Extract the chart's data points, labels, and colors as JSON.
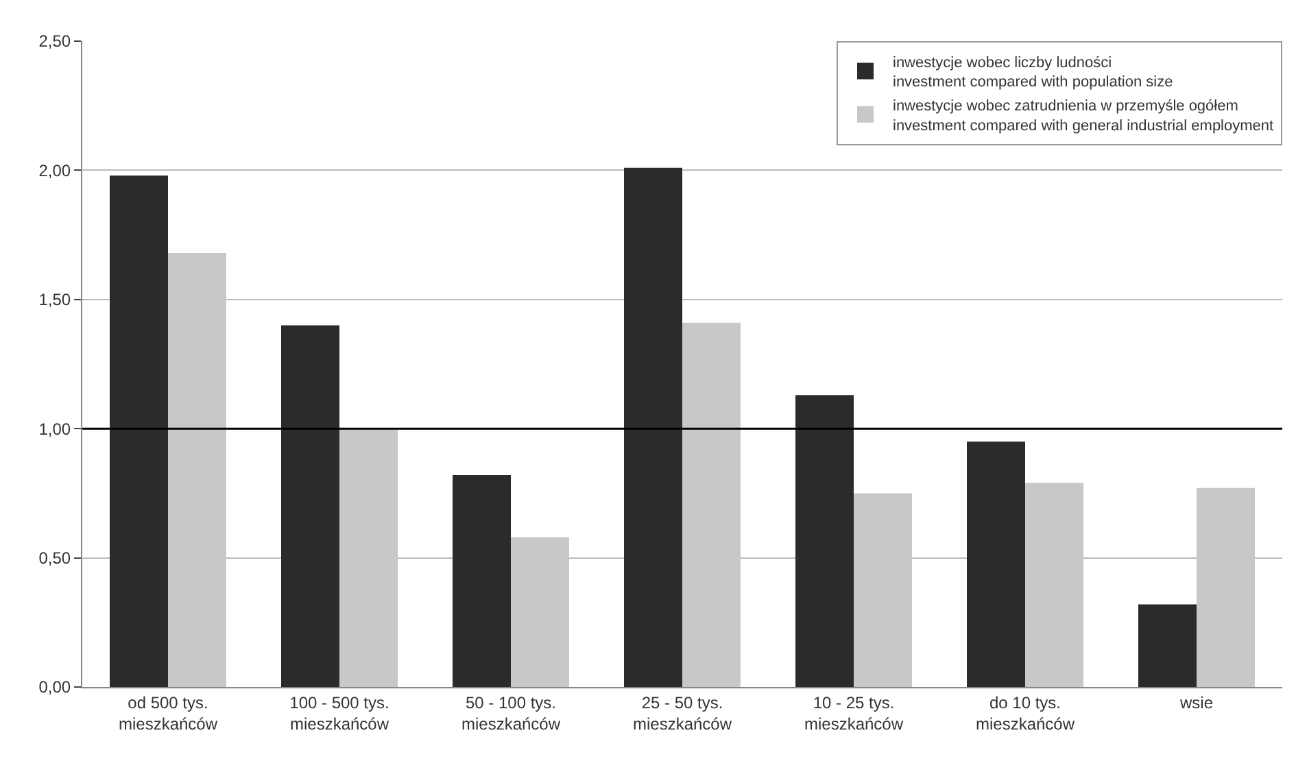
{
  "chart_data": {
    "type": "bar",
    "categories": [
      "od 500 tys.\nmieszkańców",
      "100 - 500 tys.\nmieszkańców",
      "50 - 100 tys.\nmieszkańców",
      "25 - 50 tys.\nmieszkańców",
      "10 - 25 tys.\nmieszkańców",
      "do 10 tys.\nmieszkańców",
      "wsie"
    ],
    "series": [
      {
        "name": "inwestycje wobec liczby ludności\ninvestment compared with population size",
        "color": "#2b2b2b",
        "values": [
          1.98,
          1.4,
          0.82,
          2.01,
          1.13,
          0.95,
          0.32
        ]
      },
      {
        "name": "inwestycje wobec zatrudnienia w przemyśle ogółem\ninvestment compared with general industrial employment",
        "color": "#c8c8c8",
        "values": [
          1.68,
          1.0,
          0.58,
          1.41,
          0.75,
          0.79,
          0.77
        ]
      }
    ],
    "ylim": [
      0,
      2.5
    ],
    "yticks": [
      {
        "value": 0,
        "label": "0,00"
      },
      {
        "value": 0.5,
        "label": "0,50"
      },
      {
        "value": 1,
        "label": "1,00"
      },
      {
        "value": 1.5,
        "label": "1,50"
      },
      {
        "value": 2,
        "label": "2,00"
      },
      {
        "value": 2.5,
        "label": "2,50"
      }
    ],
    "ref_lines": [
      {
        "axis": "y",
        "value": 1,
        "color": "#000000"
      }
    ],
    "grid": "y",
    "legend": "top right"
  }
}
